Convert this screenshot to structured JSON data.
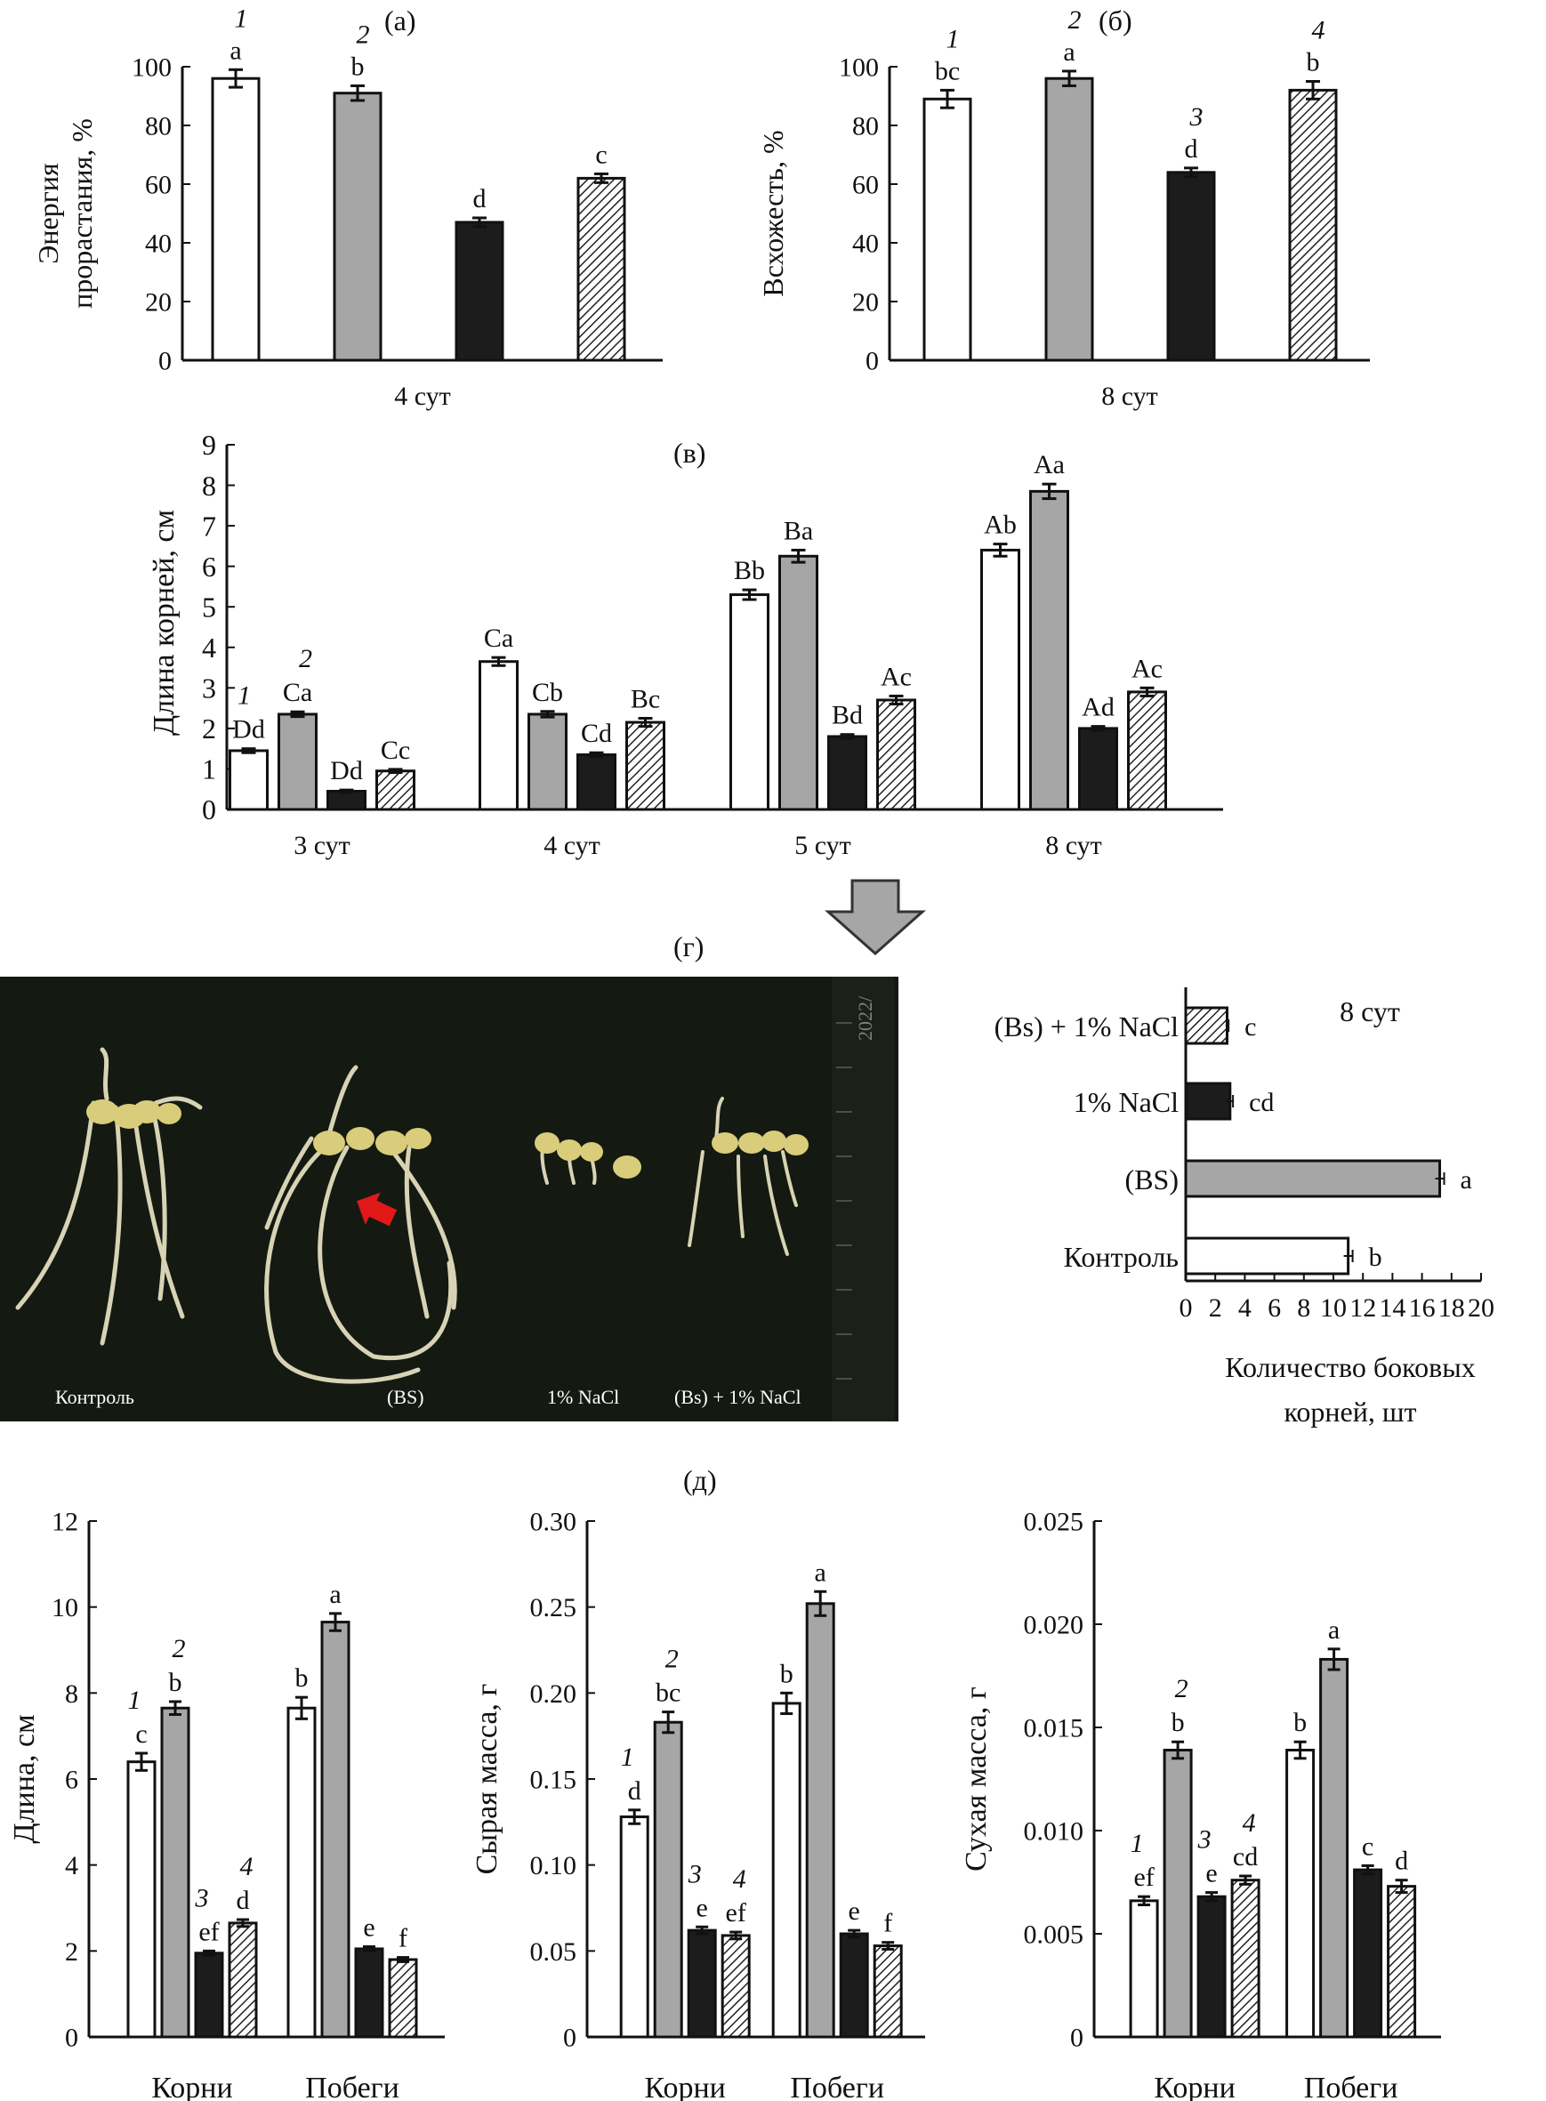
{
  "colors": {
    "control": "#ffffff",
    "bs": "#a6a6a6",
    "nacl": "#1c1c1c",
    "bs_nacl": "hatched",
    "photo_background": "#141a12"
  },
  "panel_labels": {
    "a": "(а)",
    "b": "(б)",
    "c": "(в)",
    "d": "(г)",
    "e": "(д)"
  },
  "photo": {
    "labels": [
      "Контроль",
      "(BS)",
      "1% NaCl",
      "(Bs) + 1% NaCl"
    ],
    "ruler_text": "2022/",
    "arrow": "red arrow pointing to lateral roots"
  },
  "chart_data": [
    {
      "id": "a",
      "type": "bar",
      "ylabel": "Энергия прорастания, %",
      "xlabel": "4 сут",
      "ylim": [
        0,
        100
      ],
      "yticks": [
        0,
        20,
        40,
        60,
        80,
        100
      ],
      "treatment_numbers": [
        "1",
        "2",
        "",
        ""
      ],
      "values": [
        96,
        91,
        47,
        62
      ],
      "errors": [
        3,
        2.5,
        1.5,
        1.5
      ],
      "letters": [
        "a",
        "b",
        "d",
        "c"
      ]
    },
    {
      "id": "b",
      "type": "bar",
      "ylabel": "Всхожесть, %",
      "xlabel": "8 сут",
      "ylim": [
        0,
        100
      ],
      "yticks": [
        0,
        20,
        40,
        60,
        80,
        100
      ],
      "treatment_numbers": [
        "1",
        "2",
        "3",
        "4"
      ],
      "values": [
        89,
        96,
        64,
        92
      ],
      "errors": [
        3,
        2.5,
        1.5,
        3
      ],
      "letters": [
        "bc",
        "a",
        "d",
        "b"
      ]
    },
    {
      "id": "c",
      "type": "bar",
      "ylabel": "Длина корней, см",
      "categories": [
        "3 сут",
        "4 сут",
        "5 сут",
        "8 сут"
      ],
      "ylim": [
        0,
        9
      ],
      "yticks": [
        0,
        1,
        2,
        3,
        4,
        5,
        6,
        7,
        8,
        9
      ],
      "treatment_numbers": [
        "1",
        "2"
      ],
      "series": [
        {
          "values": [
            1.45,
            3.65,
            5.3,
            6.4
          ],
          "errors": [
            0.05,
            0.1,
            0.12,
            0.15
          ],
          "letters": [
            "Dd",
            "Ca",
            "Bb",
            "Ab"
          ]
        },
        {
          "values": [
            2.35,
            2.35,
            6.25,
            7.85
          ],
          "errors": [
            0.06,
            0.07,
            0.15,
            0.18
          ],
          "letters": [
            "Ca",
            "Cb",
            "Ba",
            "Aa"
          ]
        },
        {
          "values": [
            0.45,
            1.35,
            1.8,
            2.0
          ],
          "errors": [
            0.03,
            0.05,
            0.05,
            0.05
          ],
          "letters": [
            "Dd",
            "Cd",
            "Bd",
            "Ad"
          ]
        },
        {
          "values": [
            0.95,
            2.15,
            2.7,
            2.9
          ],
          "errors": [
            0.04,
            0.1,
            0.1,
            0.1
          ],
          "letters": [
            "Cc",
            "Bc",
            "Ac",
            "Ac"
          ]
        }
      ]
    },
    {
      "id": "d",
      "type": "bar",
      "orientation": "horizontal",
      "title": "8 сут",
      "xlabel": "Количество боковых корней, шт",
      "categories": [
        "(Bs) + 1% NaCl",
        "1% NaCl",
        "(BS)",
        "Контроль"
      ],
      "xlim": [
        0,
        20
      ],
      "xticks": [
        0,
        2,
        4,
        6,
        8,
        10,
        12,
        14,
        16,
        18,
        20
      ],
      "xtick_labels": [
        "0",
        "2",
        "4",
        "6",
        "8",
        "10",
        "12",
        "14",
        "16",
        "18",
        "20"
      ],
      "values": [
        2.8,
        3.0,
        17.2,
        11.0
      ],
      "errors": [
        0.1,
        0.2,
        0.3,
        0.3
      ],
      "letters": [
        "c",
        "cd",
        "a",
        "b"
      ]
    },
    {
      "id": "e1",
      "type": "bar",
      "ylabel": "Длина, см",
      "categories": [
        "Корни",
        "Побеги"
      ],
      "ylim": [
        0,
        12
      ],
      "yticks": [
        0,
        2,
        4,
        6,
        8,
        10,
        12
      ],
      "ytick_labels": [
        "0",
        "2",
        "4",
        "6",
        "8",
        "10",
        "12"
      ],
      "treatment_numbers": [
        "1",
        "2",
        "3",
        "4"
      ],
      "series": [
        {
          "values": [
            6.4,
            7.65
          ],
          "errors": [
            0.2,
            0.25
          ],
          "letters": [
            "c",
            "b"
          ]
        },
        {
          "values": [
            7.65,
            9.65
          ],
          "errors": [
            0.15,
            0.2
          ],
          "letters": [
            "b",
            "a"
          ]
        },
        {
          "values": [
            1.95,
            2.05
          ],
          "errors": [
            0.05,
            0.05
          ],
          "letters": [
            "ef",
            "e"
          ]
        },
        {
          "values": [
            2.65,
            1.8
          ],
          "errors": [
            0.08,
            0.05
          ],
          "letters": [
            "d",
            "f"
          ]
        }
      ]
    },
    {
      "id": "e2",
      "type": "bar",
      "ylabel": "Сырая масса, г",
      "categories": [
        "Корни",
        "Побеги"
      ],
      "ylim": [
        0,
        0.3
      ],
      "yticks": [
        0,
        0.05,
        0.1,
        0.15,
        0.2,
        0.25,
        0.3
      ],
      "ytick_labels": [
        "0",
        "0.05",
        "0.10",
        "0.15",
        "0.20",
        "0.25",
        "0.30"
      ],
      "treatment_numbers": [
        "1",
        "2",
        "3",
        "4"
      ],
      "series": [
        {
          "values": [
            0.128,
            0.194
          ],
          "errors": [
            0.004,
            0.006
          ],
          "letters": [
            "d",
            "b"
          ]
        },
        {
          "values": [
            0.183,
            0.252
          ],
          "errors": [
            0.006,
            0.007
          ],
          "letters": [
            "bc",
            "a"
          ]
        },
        {
          "values": [
            0.062,
            0.06
          ],
          "errors": [
            0.002,
            0.002
          ],
          "letters": [
            "e",
            "e"
          ]
        },
        {
          "values": [
            0.059,
            0.053
          ],
          "errors": [
            0.002,
            0.002
          ],
          "letters": [
            "ef",
            "f"
          ]
        }
      ]
    },
    {
      "id": "e3",
      "type": "bar",
      "ylabel": "Сухая масса, г",
      "categories": [
        "Корни",
        "Побеги"
      ],
      "ylim": [
        0,
        0.025
      ],
      "yticks": [
        0,
        0.005,
        0.01,
        0.015,
        0.02,
        0.025
      ],
      "ytick_labels": [
        "0",
        "0.005",
        "0.010",
        "0.015",
        "0.020",
        "0.025"
      ],
      "treatment_numbers": [
        "1",
        "2",
        "3",
        "4"
      ],
      "series": [
        {
          "values": [
            0.0066,
            0.0139
          ],
          "errors": [
            0.0002,
            0.0004
          ],
          "letters": [
            "ef",
            "b"
          ]
        },
        {
          "values": [
            0.0139,
            0.0183
          ],
          "errors": [
            0.0004,
            0.0005
          ],
          "letters": [
            "b",
            "a"
          ]
        },
        {
          "values": [
            0.0068,
            0.0081
          ],
          "errors": [
            0.0002,
            0.0002
          ],
          "letters": [
            "e",
            "c"
          ]
        },
        {
          "values": [
            0.0076,
            0.0073
          ],
          "errors": [
            0.0002,
            0.0003
          ],
          "letters": [
            "cd",
            "d"
          ]
        }
      ]
    }
  ]
}
